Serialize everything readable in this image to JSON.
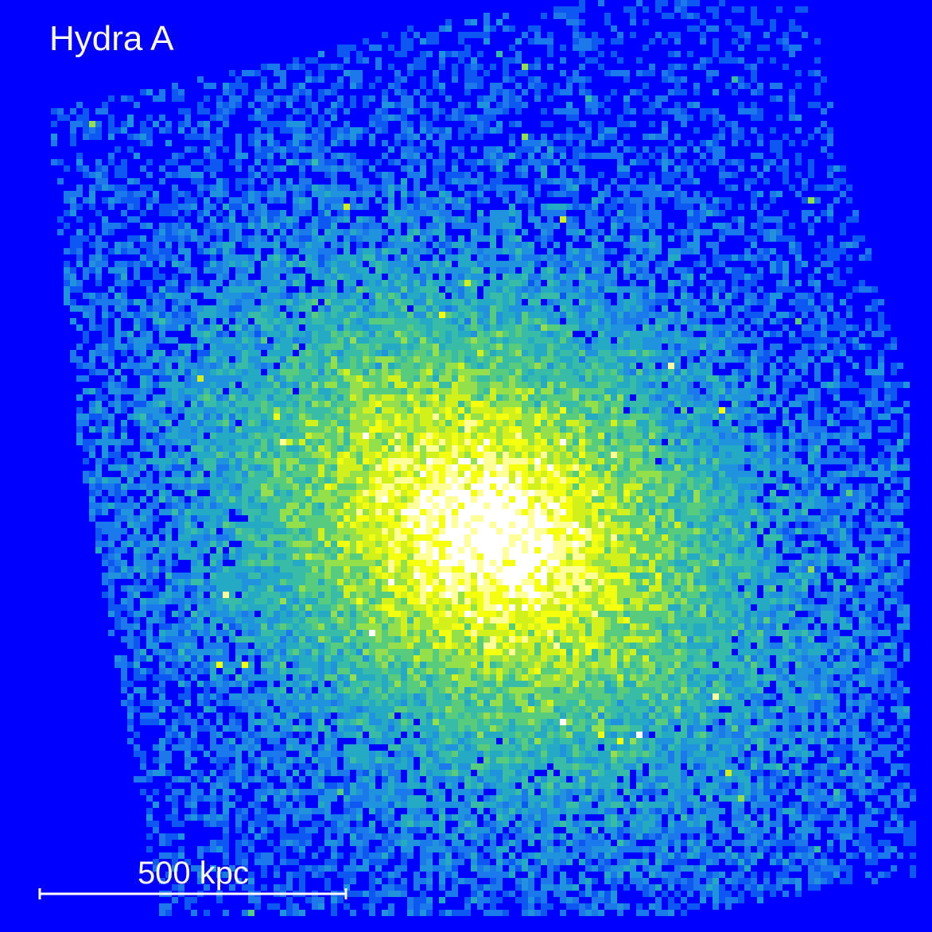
{
  "title": "Hydra A",
  "scale_bar": {
    "label": "500 kpc"
  }
}
